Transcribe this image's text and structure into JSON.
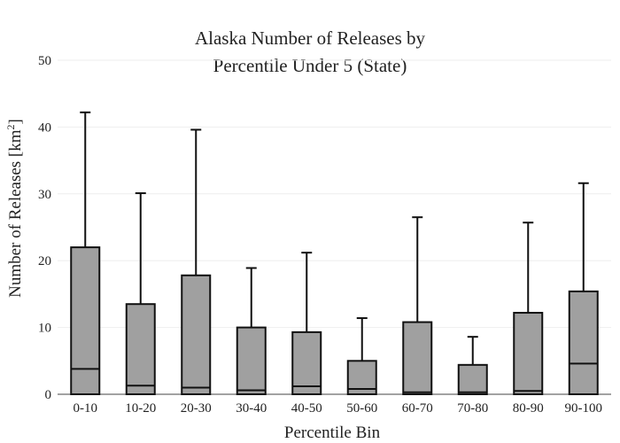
{
  "chart_data": {
    "type": "box",
    "title_lines": [
      "Alaska Number of Releases by",
      "Percentile Under 5 (State)"
    ],
    "xlabel": "Percentile Bin",
    "ylabel_main": "Number of Releases  [km",
    "ylabel_sup": "2",
    "ylabel_end": "]",
    "ylim": [
      0,
      50
    ],
    "yticks": [
      "0",
      "10",
      "20",
      "30",
      "40",
      "50"
    ],
    "ytick_values": [
      0,
      10,
      20,
      30,
      40,
      50
    ],
    "grid": true,
    "categories": [
      "0-10",
      "10-20",
      "20-30",
      "30-40",
      "40-50",
      "50-60",
      "60-70",
      "70-80",
      "80-90",
      "90-100"
    ],
    "boxes": [
      {
        "lower": 0,
        "q1": 0,
        "median": 3.8,
        "q3": 22.0,
        "upper": 42.2
      },
      {
        "lower": 0,
        "q1": 0,
        "median": 1.3,
        "q3": 13.5,
        "upper": 30.1
      },
      {
        "lower": 0,
        "q1": 0,
        "median": 1.0,
        "q3": 17.8,
        "upper": 39.6
      },
      {
        "lower": 0,
        "q1": 0,
        "median": 0.6,
        "q3": 10.0,
        "upper": 18.9
      },
      {
        "lower": 0,
        "q1": 0,
        "median": 1.2,
        "q3": 9.3,
        "upper": 21.2
      },
      {
        "lower": 0,
        "q1": 0,
        "median": 0.8,
        "q3": 5.0,
        "upper": 11.4
      },
      {
        "lower": 0,
        "q1": 0,
        "median": 0.3,
        "q3": 10.8,
        "upper": 26.5
      },
      {
        "lower": 0,
        "q1": 0,
        "median": 0.3,
        "q3": 4.4,
        "upper": 8.6
      },
      {
        "lower": 0,
        "q1": 0,
        "median": 0.5,
        "q3": 12.2,
        "upper": 25.7
      },
      {
        "lower": 0,
        "q1": 0,
        "median": 4.6,
        "q3": 15.4,
        "upper": 31.6
      }
    ]
  }
}
